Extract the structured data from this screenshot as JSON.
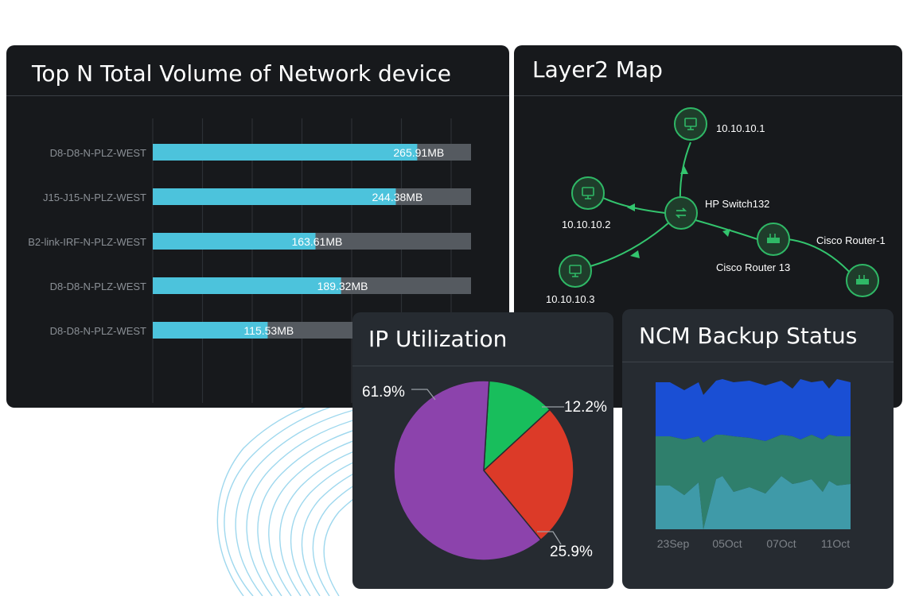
{
  "topn": {
    "title": "Top N Total Volume of Network device",
    "max_total": 320,
    "bars": [
      {
        "label": "D8-D8-N-PLZ-WEST",
        "value_label": "265.91MB",
        "value": 265.91
      },
      {
        "label": "J15-J15-N-PLZ-WEST",
        "value_label": "244.38MB",
        "value": 244.38
      },
      {
        "label": "B2-link-IRF-N-PLZ-WEST",
        "value_label": "163.61MB",
        "value": 163.61
      },
      {
        "label": "D8-D8-N-PLZ-WEST",
        "value_label": "189.32MB",
        "value": 189.32
      },
      {
        "label": "D8-D8-N-PLZ-WEST",
        "value_label": "115.53MB",
        "value": 115.53
      }
    ],
    "ticks": [
      "0",
      "50",
      "100",
      "150",
      "2"
    ],
    "colors": {
      "bar": "#4cc3dc",
      "track": "#555a60",
      "grid": "#2c3035"
    }
  },
  "layer2": {
    "title": "Layer2 Map",
    "nodes": [
      {
        "id": "n1",
        "label": "10.10.10.1",
        "icon": "monitor-icon"
      },
      {
        "id": "n2",
        "label": "10.10.10.2",
        "icon": "monitor-icon"
      },
      {
        "id": "n3",
        "label": "10.10.10.3",
        "icon": "monitor-icon"
      },
      {
        "id": "sw",
        "label": "HP Switch132",
        "icon": "switch-icon"
      },
      {
        "id": "r13",
        "label": "Cisco Router 13",
        "icon": "router-icon"
      },
      {
        "id": "r1",
        "label": "Cisco Router-1",
        "icon": "router-icon"
      }
    ],
    "colors": {
      "node": "#2fb866",
      "node_fill": "#1f3d2b",
      "link": "#33c56e"
    }
  },
  "ip": {
    "title": "IP Utilization",
    "slices": [
      {
        "label": "12.2%",
        "value": 12.2,
        "color": "#18be5c"
      },
      {
        "label": "25.9%",
        "value": 25.9,
        "color": "#dc3a28"
      },
      {
        "label": "61.9%",
        "value": 61.9,
        "color": "#8c43ac"
      }
    ]
  },
  "ncm": {
    "title": "NCM Backup Status",
    "x_labels": [
      "23Sep",
      "05Oct",
      "07Oct",
      "11Oct"
    ],
    "colors": {
      "top": "#1a4fd4",
      "middle": "#2f7f6c",
      "bottom": "#3f9aa8"
    }
  }
}
